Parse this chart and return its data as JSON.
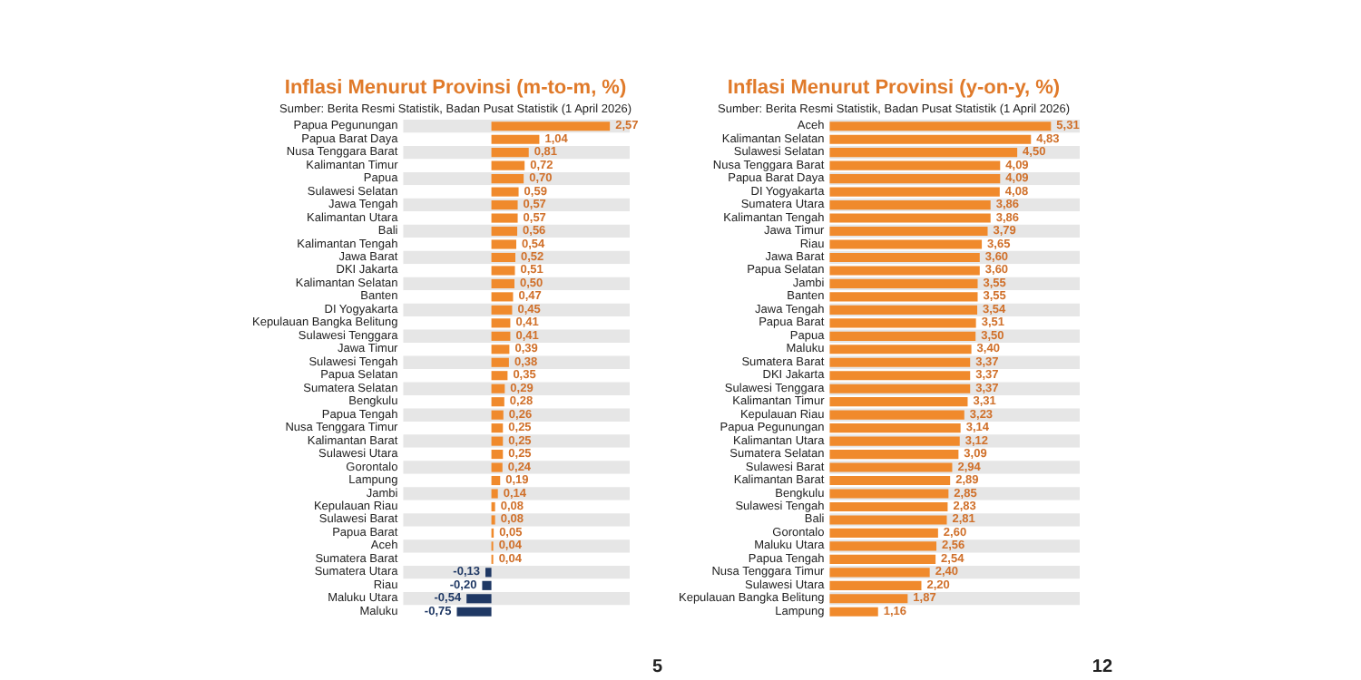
{
  "chart_data": [
    {
      "type": "bar",
      "orientation": "horizontal",
      "title": "Inflasi Menurut Provinsi (m-to-m, %)",
      "subtitle": "Sumber: Berita Resmi Statistik, Badan Pusat Statistik (1 April 2026)",
      "categories": [
        "Papua Pegunungan",
        "Papua Barat Daya",
        "Nusa Tenggara Barat",
        "Kalimantan Timur",
        "Papua",
        "Sulawesi Selatan",
        "Jawa Tengah",
        "Kalimantan Utara",
        "Bali",
        "Kalimantan Tengah",
        "Jawa Barat",
        "DKI Jakarta",
        "Kalimantan Selatan",
        "Banten",
        "DI Yogyakarta",
        "Kepulauan Bangka Belitung",
        "Sulawesi Tenggara",
        "Jawa Timur",
        "Sulawesi Tengah",
        "Papua Selatan",
        "Sumatera Selatan",
        "Bengkulu",
        "Papua Tengah",
        "Nusa Tenggara Timur",
        "Kalimantan Barat",
        "Sulawesi Utara",
        "Gorontalo",
        "Lampung",
        "Jambi",
        "Kepulauan Riau",
        "Sulawesi Barat",
        "Papua Barat",
        "Aceh",
        "Sumatera Barat",
        "Sumatera Utara",
        "Riau",
        "Maluku Utara",
        "Maluku"
      ],
      "values": [
        2.57,
        1.04,
        0.81,
        0.72,
        0.7,
        0.59,
        0.57,
        0.57,
        0.56,
        0.54,
        0.52,
        0.51,
        0.5,
        0.47,
        0.45,
        0.41,
        0.41,
        0.39,
        0.38,
        0.35,
        0.29,
        0.28,
        0.26,
        0.25,
        0.25,
        0.25,
        0.24,
        0.19,
        0.14,
        0.08,
        0.08,
        0.05,
        0.04,
        0.04,
        -0.13,
        -0.2,
        -0.54,
        -0.75
      ],
      "value_labels": [
        "2,57",
        "1,04",
        "0,81",
        "0,72",
        "0,70",
        "0,59",
        "0,57",
        "0,57",
        "0,56",
        "0,54",
        "0,52",
        "0,51",
        "0,50",
        "0,47",
        "0,45",
        "0,41",
        "0,41",
        "0,39",
        "0,38",
        "0,35",
        "0,29",
        "0,28",
        "0,26",
        "0,25",
        "0,25",
        "0,25",
        "0,24",
        "0,19",
        "0,14",
        "0,08",
        "0,08",
        "0,05",
        "0,04",
        "0,04",
        "-0,13",
        "-0,20",
        "-0,54",
        "-0,75"
      ],
      "colors": [
        "#f08a2c",
        "#f08a2c",
        "#f08a2c",
        "#f08a2c",
        "#f08a2c",
        "#f08a2c",
        "#f08a2c",
        "#f08a2c",
        "#f08a2c",
        "#f08a2c",
        "#f08a2c",
        "#f08a2c",
        "#f08a2c",
        "#f08a2c",
        "#f08a2c",
        "#f08a2c",
        "#f08a2c",
        "#f08a2c",
        "#f08a2c",
        "#f08a2c",
        "#f08a2c",
        "#f08a2c",
        "#f08a2c",
        "#f08a2c",
        "#f08a2c",
        "#f08a2c",
        "#f08a2c",
        "#f08a2c",
        "#f08a2c",
        "#f08a2c",
        "#f08a2c",
        "#f08a2c",
        "#f08a2c",
        "#f08a2c",
        "#1f3864",
        "#1f3864",
        "#1f3864",
        "#1f3864"
      ],
      "annotations": [
        "5"
      ]
    },
    {
      "type": "bar",
      "orientation": "horizontal",
      "title": "Inflasi Menurut Provinsi (y-on-y, %)",
      "subtitle": "Sumber: Berita Resmi Statistik, Badan Pusat Statistik (1 April 2026)",
      "categories": [
        "Aceh",
        "Kalimantan Selatan",
        "Sulawesi Selatan",
        "Nusa Tenggara Barat",
        "Papua Barat Daya",
        "DI Yogyakarta",
        "Sumatera Utara",
        "Kalimantan Tengah",
        "Jawa Timur",
        "Riau",
        "Jawa Barat",
        "Papua Selatan",
        "Jambi",
        "Banten",
        "Jawa Tengah",
        "Papua Barat",
        "Papua",
        "Maluku",
        "Sumatera Barat",
        "DKI Jakarta",
        "Sulawesi Tenggara",
        "Kalimantan Timur",
        "Kepulauan Riau",
        "Papua Pegunungan",
        "Kalimantan Utara",
        "Sumatera Selatan",
        "Sulawesi Barat",
        "Kalimantan Barat",
        "Bengkulu",
        "Sulawesi Tengah",
        "Bali",
        "Gorontalo",
        "Maluku Utara",
        "Papua Tengah",
        "Nusa Tenggara Timur",
        "Sulawesi Utara",
        "Kepulauan Bangka Belitung",
        "Lampung"
      ],
      "values": [
        5.31,
        4.83,
        4.5,
        4.09,
        4.09,
        4.08,
        3.86,
        3.86,
        3.79,
        3.65,
        3.6,
        3.6,
        3.55,
        3.55,
        3.54,
        3.51,
        3.5,
        3.4,
        3.37,
        3.37,
        3.37,
        3.31,
        3.23,
        3.14,
        3.12,
        3.09,
        2.94,
        2.89,
        2.85,
        2.83,
        2.81,
        2.6,
        2.56,
        2.54,
        2.4,
        2.2,
        1.87,
        1.16
      ],
      "value_labels": [
        "5,31",
        "4,83",
        "4,50",
        "4,09",
        "4,09",
        "4,08",
        "3,86",
        "3,86",
        "3,79",
        "3,65",
        "3,60",
        "3,60",
        "3,55",
        "3,55",
        "3,54",
        "3,51",
        "3,50",
        "3,40",
        "3,37",
        "3,37",
        "3,37",
        "3,31",
        "3,23",
        "3,14",
        "3,12",
        "3,09",
        "2,94",
        "2,89",
        "2,85",
        "2,83",
        "2,81",
        "2,60",
        "2,56",
        "2,54",
        "2,40",
        "2,20",
        "1,87",
        "1,16"
      ],
      "color": "#f08a2c",
      "annotations": [
        "12"
      ]
    }
  ]
}
